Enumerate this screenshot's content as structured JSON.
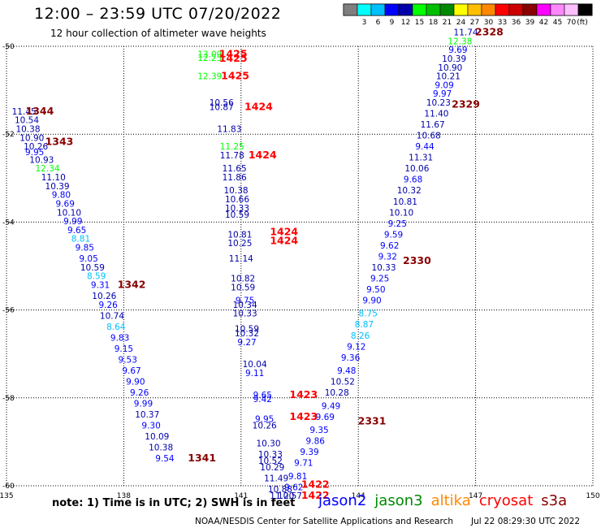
{
  "header": {
    "title": "12:00 – 23:59 UTC 07/20/2022",
    "subtitle": "12 hour collection of altimeter wave heights"
  },
  "color_scale": {
    "unit": "(ft)",
    "swatches": [
      {
        "color": "#7f7f7f",
        "label": ""
      },
      {
        "color": "#00ffff",
        "label": "3"
      },
      {
        "color": "#00bfff",
        "label": "6"
      },
      {
        "color": "#0000ff",
        "label": "9"
      },
      {
        "color": "#0000aa",
        "label": "12"
      },
      {
        "color": "#00ff00",
        "label": "15"
      },
      {
        "color": "#00bf00",
        "label": "18"
      },
      {
        "color": "#008800",
        "label": "21"
      },
      {
        "color": "#ffff00",
        "label": "24"
      },
      {
        "color": "#ffbf00",
        "label": "27"
      },
      {
        "color": "#ff8800",
        "label": "30"
      },
      {
        "color": "#ff0000",
        "label": "33"
      },
      {
        "color": "#cc0000",
        "label": "36"
      },
      {
        "color": "#880000",
        "label": "39"
      },
      {
        "color": "#ff00ff",
        "label": "42"
      },
      {
        "color": "#ff88ff",
        "label": "45"
      },
      {
        "color": "#ffbfff",
        "label": "70"
      },
      {
        "color": "#000000",
        "label": ""
      }
    ]
  },
  "footer": {
    "note": "note:  1) Time is in UTC;  2) SWH is in feet",
    "credit": "NOAA/NESDIS Center for Satellite Applications and Research",
    "timestamp": "Jul 22 08:29:30 UTC 2022",
    "satellites": [
      {
        "name": "jason2",
        "color": "#0000ff"
      },
      {
        "name": "jason3",
        "color": "#008800"
      },
      {
        "name": "altika",
        "color": "#ff8800"
      },
      {
        "name": "cryosat",
        "color": "#ff0000"
      },
      {
        "name": "s3a",
        "color": "#880000"
      }
    ]
  },
  "chart_data": {
    "type": "scatter",
    "title": "12:00 – 23:59 UTC 07/20/2022",
    "xlim": [
      135,
      150
    ],
    "ylim": [
      -60,
      -50
    ],
    "x_ticks": [
      135,
      138,
      141,
      144,
      147,
      150
    ],
    "y_ticks": [
      -50,
      -52,
      -54,
      -56,
      -58,
      -60
    ],
    "x_tick_labels": [
      "135",
      "138",
      "141",
      "144",
      "147",
      "150"
    ],
    "y_tick_labels": [
      "-50",
      "-52",
      "-54",
      "-56",
      "-58",
      "-60"
    ],
    "grid": true,
    "wave_heights": [
      {
        "x": 135.45,
        "y": -51.55,
        "v": "11.45",
        "c": "#0000aa"
      },
      {
        "x": 135.52,
        "y": -51.75,
        "v": "10.54",
        "c": "#0000aa"
      },
      {
        "x": 135.55,
        "y": -51.95,
        "v": "10.38",
        "c": "#0000aa"
      },
      {
        "x": 135.65,
        "y": -52.15,
        "v": "10.90",
        "c": "#0000aa"
      },
      {
        "x": 135.75,
        "y": -52.35,
        "v": "10.26",
        "c": "#0000aa"
      },
      {
        "x": 135.72,
        "y": -52.48,
        "v": "9.95",
        "c": "#0000ff"
      },
      {
        "x": 135.9,
        "y": -52.65,
        "v": "10.93",
        "c": "#0000aa"
      },
      {
        "x": 136.05,
        "y": -52.85,
        "v": "12.34",
        "c": "#00ff00"
      },
      {
        "x": 136.2,
        "y": -53.05,
        "v": "11.10",
        "c": "#0000aa"
      },
      {
        "x": 136.3,
        "y": -53.25,
        "v": "10.39",
        "c": "#0000aa"
      },
      {
        "x": 136.4,
        "y": -53.45,
        "v": "9.80",
        "c": "#0000ff"
      },
      {
        "x": 136.5,
        "y": -53.65,
        "v": "9.69",
        "c": "#0000ff"
      },
      {
        "x": 136.6,
        "y": -53.85,
        "v": "10.10",
        "c": "#0000aa"
      },
      {
        "x": 136.7,
        "y": -54.05,
        "v": "9.99",
        "c": "#0000ff"
      },
      {
        "x": 136.8,
        "y": -54.25,
        "v": "9.65",
        "c": "#0000ff"
      },
      {
        "x": 136.9,
        "y": -54.45,
        "v": "8.81",
        "c": "#00bfff"
      },
      {
        "x": 137.0,
        "y": -54.65,
        "v": "9.85",
        "c": "#0000ff"
      },
      {
        "x": 137.1,
        "y": -54.9,
        "v": "9.05",
        "c": "#0000ff"
      },
      {
        "x": 137.2,
        "y": -55.1,
        "v": "10.59",
        "c": "#0000aa"
      },
      {
        "x": 137.3,
        "y": -55.3,
        "v": "8.59",
        "c": "#00bfff"
      },
      {
        "x": 137.4,
        "y": -55.5,
        "v": "9.31",
        "c": "#0000ff"
      },
      {
        "x": 137.5,
        "y": -55.75,
        "v": "10.26",
        "c": "#0000aa"
      },
      {
        "x": 137.6,
        "y": -55.95,
        "v": "9.26",
        "c": "#0000ff"
      },
      {
        "x": 137.7,
        "y": -56.2,
        "v": "10.74",
        "c": "#0000aa"
      },
      {
        "x": 137.8,
        "y": -56.45,
        "v": "8.64",
        "c": "#00bfff"
      },
      {
        "x": 137.9,
        "y": -56.7,
        "v": "9.83",
        "c": "#0000ff"
      },
      {
        "x": 138.0,
        "y": -56.95,
        "v": "9.15",
        "c": "#0000ff"
      },
      {
        "x": 138.1,
        "y": -57.2,
        "v": "9.53",
        "c": "#0000ff"
      },
      {
        "x": 138.2,
        "y": -57.45,
        "v": "9.67",
        "c": "#0000ff"
      },
      {
        "x": 138.3,
        "y": -57.7,
        "v": "9.90",
        "c": "#0000ff"
      },
      {
        "x": 138.4,
        "y": -57.95,
        "v": "9.26",
        "c": "#0000ff"
      },
      {
        "x": 138.5,
        "y": -58.2,
        "v": "9.99",
        "c": "#0000ff"
      },
      {
        "x": 138.6,
        "y": -58.45,
        "v": "10.37",
        "c": "#0000aa"
      },
      {
        "x": 138.7,
        "y": -58.7,
        "v": "9.30",
        "c": "#0000ff"
      },
      {
        "x": 138.85,
        "y": -58.95,
        "v": "10.09",
        "c": "#0000aa"
      },
      {
        "x": 138.95,
        "y": -59.2,
        "v": "10.38",
        "c": "#0000aa"
      },
      {
        "x": 139.05,
        "y": -59.45,
        "v": "9.54",
        "c": "#0000ff"
      },
      {
        "x": 140.2,
        "y": -50.25,
        "v": "13.09",
        "c": "#00ff00"
      },
      {
        "x": 140.2,
        "y": -50.33,
        "v": "12.25",
        "c": "#00ff00"
      },
      {
        "x": 140.2,
        "y": -50.75,
        "v": "12.39",
        "c": "#00ff00"
      },
      {
        "x": 140.5,
        "y": -51.35,
        "v": "10.56",
        "c": "#0000aa"
      },
      {
        "x": 140.5,
        "y": -51.45,
        "v": "10.87",
        "c": "#0000aa"
      },
      {
        "x": 140.7,
        "y": -51.95,
        "v": "11.83",
        "c": "#0000aa"
      },
      {
        "x": 140.77,
        "y": -52.35,
        "v": "11.25",
        "c": "#00ff00"
      },
      {
        "x": 140.77,
        "y": -52.55,
        "v": "11.78",
        "c": "#0000aa"
      },
      {
        "x": 140.83,
        "y": -52.85,
        "v": "11.65",
        "c": "#0000aa"
      },
      {
        "x": 140.83,
        "y": -53.05,
        "v": "11.86",
        "c": "#0000aa"
      },
      {
        "x": 140.87,
        "y": -53.35,
        "v": "10.38",
        "c": "#0000aa"
      },
      {
        "x": 140.9,
        "y": -53.55,
        "v": "10.66",
        "c": "#0000aa"
      },
      {
        "x": 140.9,
        "y": -53.75,
        "v": "10.33",
        "c": "#0000aa"
      },
      {
        "x": 140.9,
        "y": -53.9,
        "v": "10.59",
        "c": "#0000aa"
      },
      {
        "x": 140.97,
        "y": -54.35,
        "v": "10.81",
        "c": "#0000aa"
      },
      {
        "x": 140.97,
        "y": -54.55,
        "v": "10.25",
        "c": "#0000aa"
      },
      {
        "x": 141.0,
        "y": -54.9,
        "v": "11.14",
        "c": "#0000aa"
      },
      {
        "x": 141.05,
        "y": -55.35,
        "v": "10.82",
        "c": "#0000aa"
      },
      {
        "x": 141.05,
        "y": -55.55,
        "v": "10.59",
        "c": "#0000aa"
      },
      {
        "x": 141.1,
        "y": -55.85,
        "v": "9.75",
        "c": "#0000ff"
      },
      {
        "x": 141.1,
        "y": -55.95,
        "v": "10.34",
        "c": "#0000aa"
      },
      {
        "x": 141.1,
        "y": -56.15,
        "v": "10.33",
        "c": "#0000aa"
      },
      {
        "x": 141.15,
        "y": -56.5,
        "v": "10.59",
        "c": "#0000aa"
      },
      {
        "x": 141.15,
        "y": -56.6,
        "v": "10.32",
        "c": "#0000aa"
      },
      {
        "x": 141.15,
        "y": -56.8,
        "v": "9.27",
        "c": "#0000ff"
      },
      {
        "x": 141.35,
        "y": -57.3,
        "v": "10.04",
        "c": "#0000aa"
      },
      {
        "x": 141.35,
        "y": -57.5,
        "v": "9.11",
        "c": "#0000ff"
      },
      {
        "x": 141.55,
        "y": -58.0,
        "v": "9.65",
        "c": "#0000ff"
      },
      {
        "x": 141.55,
        "y": -58.1,
        "v": "9.42",
        "c": "#0000ff"
      },
      {
        "x": 141.6,
        "y": -58.55,
        "v": "9.95",
        "c": "#0000ff"
      },
      {
        "x": 141.6,
        "y": -58.7,
        "v": "10.26",
        "c": "#0000aa"
      },
      {
        "x": 141.7,
        "y": -59.1,
        "v": "10.30",
        "c": "#0000aa"
      },
      {
        "x": 141.75,
        "y": -59.35,
        "v": "10.33",
        "c": "#0000aa"
      },
      {
        "x": 141.75,
        "y": -59.5,
        "v": "10.52",
        "c": "#0000aa"
      },
      {
        "x": 141.8,
        "y": -59.65,
        "v": "10.29",
        "c": "#0000aa"
      },
      {
        "x": 141.9,
        "y": -59.9,
        "v": "11.49",
        "c": "#0000aa"
      },
      {
        "x": 142.0,
        "y": -60.15,
        "v": "10.88",
        "c": "#0000aa"
      },
      {
        "x": 142.05,
        "y": -60.3,
        "v": "11.20",
        "c": "#0000aa"
      },
      {
        "x": 142.25,
        "y": -60.3,
        "v": "10.57",
        "c": "#0000aa"
      },
      {
        "x": 142.35,
        "y": -60.1,
        "v": "9.62",
        "c": "#0000ff"
      },
      {
        "x": 142.45,
        "y": -59.85,
        "v": "9.81",
        "c": "#0000ff"
      },
      {
        "x": 142.6,
        "y": -59.55,
        "v": "9.71",
        "c": "#0000ff"
      },
      {
        "x": 142.75,
        "y": -59.3,
        "v": "9.39",
        "c": "#0000ff"
      },
      {
        "x": 142.9,
        "y": -59.05,
        "v": "9.86",
        "c": "#0000ff"
      },
      {
        "x": 143.0,
        "y": -58.8,
        "v": "9.35",
        "c": "#0000ff"
      },
      {
        "x": 143.15,
        "y": -58.5,
        "v": "9.69",
        "c": "#0000ff"
      },
      {
        "x": 143.3,
        "y": -58.25,
        "v": "9.49",
        "c": "#0000ff"
      },
      {
        "x": 143.45,
        "y": -57.95,
        "v": "10.28",
        "c": "#0000aa"
      },
      {
        "x": 143.6,
        "y": -57.7,
        "v": "10.52",
        "c": "#0000aa"
      },
      {
        "x": 143.7,
        "y": -57.45,
        "v": "9.48",
        "c": "#0000ff"
      },
      {
        "x": 143.8,
        "y": -57.15,
        "v": "9.36",
        "c": "#0000ff"
      },
      {
        "x": 143.95,
        "y": -56.9,
        "v": "9.12",
        "c": "#0000ff"
      },
      {
        "x": 144.05,
        "y": -56.65,
        "v": "8.26",
        "c": "#00bfff"
      },
      {
        "x": 144.15,
        "y": -56.4,
        "v": "8.87",
        "c": "#00bfff"
      },
      {
        "x": 144.25,
        "y": -56.15,
        "v": "8.75",
        "c": "#00bfff"
      },
      {
        "x": 144.35,
        "y": -55.85,
        "v": "9.90",
        "c": "#0000ff"
      },
      {
        "x": 144.45,
        "y": -55.6,
        "v": "9.50",
        "c": "#0000ff"
      },
      {
        "x": 144.55,
        "y": -55.35,
        "v": "9.25",
        "c": "#0000ff"
      },
      {
        "x": 144.65,
        "y": -55.1,
        "v": "10.33",
        "c": "#0000aa"
      },
      {
        "x": 144.75,
        "y": -54.85,
        "v": "9.32",
        "c": "#0000ff"
      },
      {
        "x": 144.8,
        "y": -54.6,
        "v": "9.62",
        "c": "#0000ff"
      },
      {
        "x": 144.9,
        "y": -54.35,
        "v": "9.59",
        "c": "#0000ff"
      },
      {
        "x": 145.0,
        "y": -54.1,
        "v": "9.25",
        "c": "#0000ff"
      },
      {
        "x": 145.1,
        "y": -53.85,
        "v": "10.10",
        "c": "#0000aa"
      },
      {
        "x": 145.2,
        "y": -53.6,
        "v": "10.81",
        "c": "#0000aa"
      },
      {
        "x": 145.3,
        "y": -53.35,
        "v": "10.32",
        "c": "#0000aa"
      },
      {
        "x": 145.4,
        "y": -53.1,
        "v": "9.68",
        "c": "#0000ff"
      },
      {
        "x": 145.5,
        "y": -52.85,
        "v": "10.06",
        "c": "#0000aa"
      },
      {
        "x": 145.6,
        "y": -52.6,
        "v": "11.31",
        "c": "#0000aa"
      },
      {
        "x": 145.7,
        "y": -52.35,
        "v": "9.44",
        "c": "#0000ff"
      },
      {
        "x": 145.8,
        "y": -52.1,
        "v": "10.68",
        "c": "#0000aa"
      },
      {
        "x": 145.9,
        "y": -51.85,
        "v": "11.67",
        "c": "#0000aa"
      },
      {
        "x": 146.0,
        "y": -51.6,
        "v": "11.40",
        "c": "#0000aa"
      },
      {
        "x": 146.05,
        "y": -51.35,
        "v": "10.23",
        "c": "#0000aa"
      },
      {
        "x": 146.15,
        "y": -51.15,
        "v": "9.97",
        "c": "#0000ff"
      },
      {
        "x": 146.2,
        "y": -50.95,
        "v": "9.09",
        "c": "#0000ff"
      },
      {
        "x": 146.3,
        "y": -50.75,
        "v": "10.21",
        "c": "#0000aa"
      },
      {
        "x": 146.35,
        "y": -50.55,
        "v": "10.90",
        "c": "#0000aa"
      },
      {
        "x": 146.45,
        "y": -50.35,
        "v": "10.39",
        "c": "#0000aa"
      },
      {
        "x": 146.55,
        "y": -50.15,
        "v": "9.69",
        "c": "#0000ff"
      },
      {
        "x": 146.6,
        "y": -49.95,
        "v": "12.38",
        "c": "#00ff00"
      },
      {
        "x": 146.75,
        "y": -49.75,
        "v": "11.74",
        "c": "#0000aa"
      }
    ],
    "track_times": [
      {
        "x": 135.85,
        "y": -51.55,
        "v": "1344",
        "c": "#880000"
      },
      {
        "x": 136.35,
        "y": -52.25,
        "v": "1343",
        "c": "#880000"
      },
      {
        "x": 138.2,
        "y": -55.5,
        "v": "1342",
        "c": "#880000"
      },
      {
        "x": 140.0,
        "y": -59.45,
        "v": "1341",
        "c": "#880000"
      },
      {
        "x": 140.8,
        "y": -50.25,
        "v": "1425",
        "c": "#ff0000"
      },
      {
        "x": 140.8,
        "y": -50.35,
        "v": "1425",
        "c": "#ff0000"
      },
      {
        "x": 140.85,
        "y": -50.75,
        "v": "1425",
        "c": "#ff0000"
      },
      {
        "x": 141.45,
        "y": -51.45,
        "v": "1424",
        "c": "#ff0000"
      },
      {
        "x": 141.55,
        "y": -52.55,
        "v": "1424",
        "c": "#ff0000"
      },
      {
        "x": 142.1,
        "y": -54.3,
        "v": "1424",
        "c": "#ff0000"
      },
      {
        "x": 142.1,
        "y": -54.5,
        "v": "1424",
        "c": "#ff0000"
      },
      {
        "x": 142.6,
        "y": -58.0,
        "v": "1423",
        "c": "#ff0000"
      },
      {
        "x": 142.6,
        "y": -58.5,
        "v": "1423",
        "c": "#ff0000"
      },
      {
        "x": 142.9,
        "y": -60.05,
        "v": "1422",
        "c": "#ff0000"
      },
      {
        "x": 142.9,
        "y": -60.3,
        "v": "1422",
        "c": "#ff0000"
      },
      {
        "x": 144.35,
        "y": -58.6,
        "v": "2331",
        "c": "#880000"
      },
      {
        "x": 145.5,
        "y": -54.95,
        "v": "2330",
        "c": "#880000"
      },
      {
        "x": 146.75,
        "y": -51.4,
        "v": "2329",
        "c": "#880000"
      },
      {
        "x": 147.35,
        "y": -49.75,
        "v": "2328",
        "c": "#880000"
      }
    ]
  }
}
